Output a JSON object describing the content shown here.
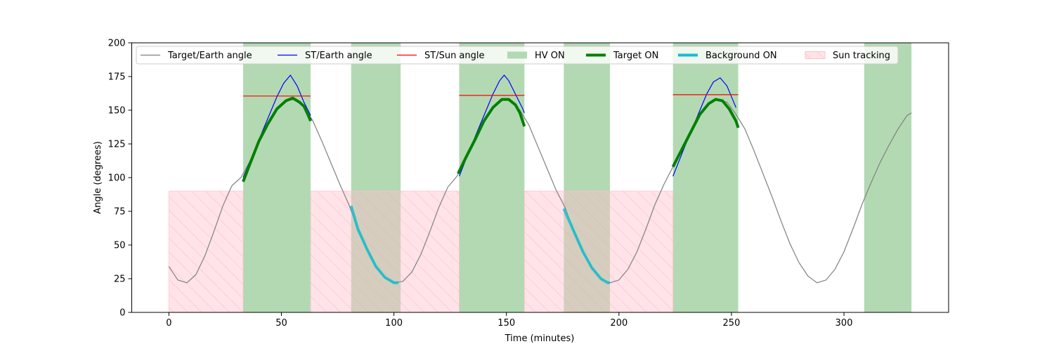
{
  "chart_data": {
    "type": "line",
    "title": "",
    "xlabel": "Time (minutes)",
    "ylabel": "Angle (degrees)",
    "xlim": [
      -16.5,
      346.5
    ],
    "ylim": [
      0,
      200
    ],
    "xticks": [
      0,
      50,
      100,
      150,
      200,
      250,
      300
    ],
    "yticks": [
      0,
      25,
      50,
      75,
      100,
      125,
      150,
      175,
      200
    ],
    "grid": false,
    "legend_position": "top",
    "legend": [
      {
        "label": "Target/Earth angle",
        "kind": "line",
        "color": "#808080"
      },
      {
        "label": "ST/Earth angle",
        "kind": "line",
        "color": "#0000ff"
      },
      {
        "label": "ST/Sun angle",
        "kind": "line",
        "color": "#ff0000"
      },
      {
        "label": "HV ON",
        "kind": "patch",
        "color": "#b3d9b3"
      },
      {
        "label": "Target ON",
        "kind": "thickline",
        "color": "#008000"
      },
      {
        "label": "Background ON",
        "kind": "thickline",
        "color": "#17becf"
      },
      {
        "label": "Sun tracking",
        "kind": "hatch",
        "color": "#ffc0cb"
      }
    ],
    "target_earth_angle": {
      "color": "#808080",
      "x": [
        0,
        4,
        8,
        12,
        16,
        20,
        24,
        28,
        32,
        36,
        40,
        44,
        48,
        52,
        56,
        60,
        64,
        68,
        72,
        76,
        80,
        84,
        88,
        92,
        96,
        100,
        104,
        108,
        112,
        116,
        120,
        124,
        128,
        132,
        136,
        140,
        144,
        148,
        152,
        156,
        160,
        164,
        168,
        172,
        176,
        180,
        184,
        188,
        192,
        196,
        200,
        204,
        208,
        212,
        216,
        220,
        224,
        228,
        232,
        236,
        240,
        244,
        248,
        252,
        256,
        260,
        264,
        268,
        272,
        276,
        280,
        284,
        288,
        292,
        296,
        300,
        304,
        308,
        312,
        316,
        320,
        324,
        328,
        330
      ],
      "y": [
        34,
        24,
        22,
        28,
        42,
        60,
        79,
        94,
        100,
        112,
        127,
        140,
        151,
        157,
        158,
        153,
        142,
        127,
        111,
        95,
        80,
        62,
        47,
        34,
        26,
        22,
        23,
        30,
        43,
        60,
        78,
        93,
        101,
        115,
        128,
        142,
        152,
        158,
        157,
        150,
        139,
        123,
        107,
        91,
        78,
        60,
        45,
        33,
        25,
        22,
        24,
        32,
        45,
        62,
        80,
        95,
        108,
        121,
        134,
        147,
        155,
        158,
        156,
        147,
        136,
        120,
        103,
        86,
        68,
        51,
        37,
        27,
        22,
        24,
        32,
        45,
        62,
        80,
        96,
        111,
        124,
        136,
        146,
        148
      ]
    },
    "st_earth_angle": {
      "color": "#0000ff",
      "segments": [
        {
          "x": [
            33,
            38,
            43,
            48,
            51,
            54,
            57,
            60,
            63
          ],
          "y": [
            100,
            120,
            140,
            160,
            170,
            176,
            168,
            156,
            146
          ]
        },
        {
          "x": [
            129,
            134,
            139,
            144,
            147,
            149,
            151,
            154,
            157,
            158
          ],
          "y": [
            101,
            122,
            142,
            162,
            172,
            176,
            172,
            162,
            152,
            148
          ]
        },
        {
          "x": [
            224,
            229,
            234,
            239,
            242,
            245,
            248,
            250,
            252
          ],
          "y": [
            101,
            122,
            142,
            162,
            171,
            174,
            168,
            160,
            152
          ]
        }
      ]
    },
    "st_sun_angle": {
      "color": "#ff0000",
      "segments": [
        {
          "x": [
            33,
            63
          ],
          "y": [
            160.5,
            160.5
          ]
        },
        {
          "x": [
            129,
            158
          ],
          "y": [
            161,
            161
          ]
        },
        {
          "x": [
            224,
            253
          ],
          "y": [
            161.5,
            161.5
          ]
        }
      ]
    },
    "target_on": {
      "color": "#008000",
      "segments": [
        {
          "x": [
            33,
            36,
            40,
            44,
            48,
            52,
            55,
            58,
            60,
            62,
            63
          ],
          "y": [
            97,
            110,
            127,
            140,
            151,
            157,
            159,
            156,
            153,
            146,
            142
          ]
        },
        {
          "x": [
            128.5,
            132,
            136,
            140,
            144,
            148,
            151,
            154,
            156,
            158
          ],
          "y": [
            103,
            115,
            128,
            142,
            152,
            158,
            158,
            154,
            148,
            138
          ]
        },
        {
          "x": [
            224,
            228,
            232,
            236,
            240,
            243,
            246,
            249,
            252,
            253
          ],
          "y": [
            108,
            121,
            134,
            147,
            155,
            158,
            157,
            151,
            142,
            137
          ]
        }
      ]
    },
    "background_on": {
      "color": "#17becf",
      "segments": [
        {
          "x": [
            81,
            84,
            88,
            92,
            96,
            100,
            102
          ],
          "y": [
            79,
            62,
            47,
            34,
            26,
            22,
            22
          ]
        },
        {
          "x": [
            175.5,
            180,
            184,
            188,
            192,
            195,
            196
          ],
          "y": [
            77,
            60,
            45,
            33,
            25,
            22,
            22
          ]
        }
      ]
    },
    "hv_on_intervals": [
      [
        33,
        63
      ],
      [
        81,
        103
      ],
      [
        129,
        158
      ],
      [
        175.5,
        196
      ],
      [
        224,
        253
      ],
      [
        309,
        330
      ]
    ],
    "sun_tracking_intervals": [
      [
        0,
        33,
        90
      ],
      [
        63,
        129,
        90
      ],
      [
        158,
        224,
        90
      ]
    ]
  }
}
